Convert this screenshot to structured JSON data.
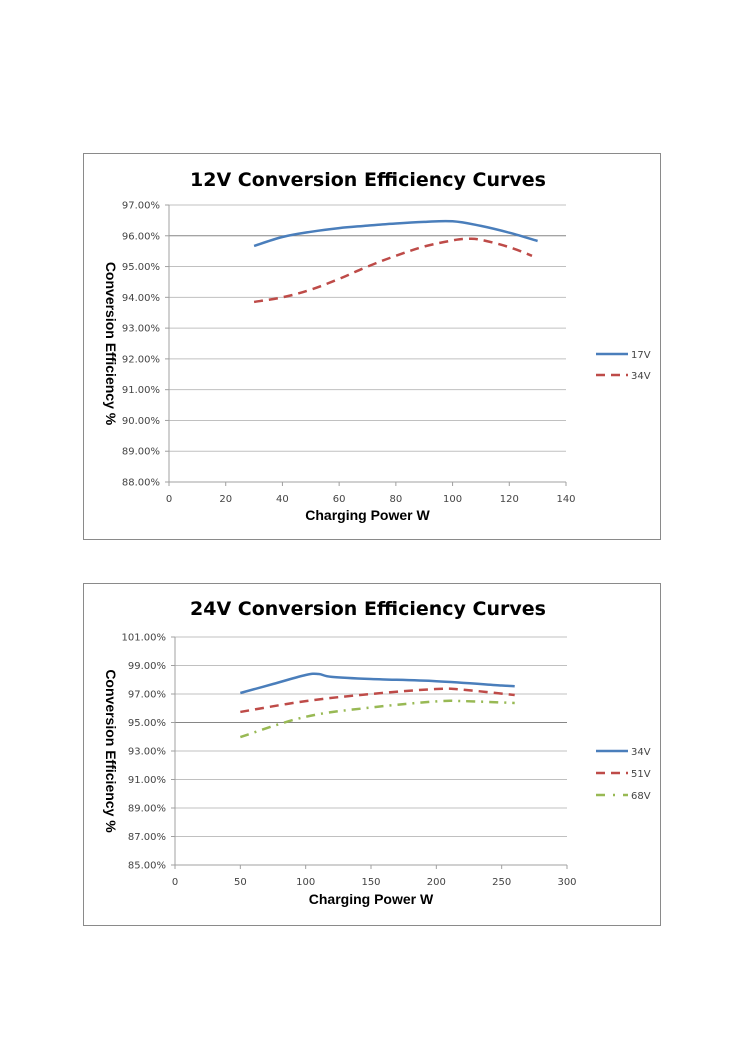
{
  "chart_data": [
    {
      "type": "line",
      "title": "12V Conversion Efficiency Curves",
      "xlabel": "Charging Power W",
      "ylabel": "Conversion Efficiency %",
      "xlim": [
        0,
        140
      ],
      "ylim": [
        88,
        97
      ],
      "xticks": [
        0,
        20,
        40,
        60,
        80,
        100,
        120,
        140
      ],
      "yticks": [
        88,
        89,
        90,
        91,
        92,
        93,
        94,
        95,
        96,
        97
      ],
      "ytick_labels": [
        "88.00%",
        "89.00%",
        "90.00%",
        "91.00%",
        "92.00%",
        "93.00%",
        "94.00%",
        "95.00%",
        "96.00%",
        "97.00%"
      ],
      "xtick_labels": [
        "0",
        "20",
        "40",
        "60",
        "80",
        "100",
        "120",
        "140"
      ],
      "grid": true,
      "emphasized_gridline": 96,
      "legend_position": "right",
      "series": [
        {
          "name": "17V",
          "color": "#4a7ebb",
          "style": "solid",
          "x": [
            30,
            40,
            50,
            60,
            70,
            80,
            90,
            100,
            110,
            120,
            130
          ],
          "y": [
            95.67,
            95.96,
            96.13,
            96.25,
            96.33,
            96.4,
            96.45,
            96.47,
            96.32,
            96.1,
            95.83
          ]
        },
        {
          "name": "34V",
          "color": "#be4b48",
          "style": "dashed",
          "x": [
            30,
            40,
            50,
            60,
            70,
            80,
            90,
            100,
            105,
            110,
            120,
            128
          ],
          "y": [
            93.85,
            94.0,
            94.25,
            94.6,
            95.0,
            95.35,
            95.65,
            95.85,
            95.9,
            95.87,
            95.63,
            95.35
          ]
        }
      ]
    },
    {
      "type": "line",
      "title": "24V Conversion Efficiency Curves",
      "xlabel": "Charging Power W",
      "ylabel": "Conversion Efficiency %",
      "xlim": [
        0,
        300
      ],
      "ylim": [
        85,
        101
      ],
      "xticks": [
        0,
        50,
        100,
        150,
        200,
        250,
        300
      ],
      "yticks": [
        85,
        87,
        89,
        91,
        93,
        95,
        97,
        99,
        101
      ],
      "ytick_labels": [
        "85.00%",
        "87.00%",
        "89.00%",
        "91.00%",
        "93.00%",
        "95.00%",
        "97.00%",
        "99.00%",
        "101.00%"
      ],
      "xtick_labels": [
        "0",
        "50",
        "100",
        "150",
        "200",
        "250",
        "300"
      ],
      "grid": true,
      "emphasized_gridline": 95,
      "legend_position": "right",
      "series": [
        {
          "name": "34V",
          "color": "#4a7ebb",
          "style": "solid",
          "x": [
            50,
            75,
            100,
            110,
            120,
            150,
            200,
            250,
            260
          ],
          "y": [
            97.07,
            97.7,
            98.33,
            98.4,
            98.2,
            98.05,
            97.9,
            97.6,
            97.55
          ]
        },
        {
          "name": "51V",
          "color": "#be4b48",
          "style": "dashed",
          "x": [
            50,
            100,
            150,
            200,
            220,
            260
          ],
          "y": [
            95.74,
            96.5,
            97.0,
            97.35,
            97.3,
            96.93
          ]
        },
        {
          "name": "68V",
          "color": "#98b954",
          "style": "dash-dot",
          "x": [
            50,
            100,
            150,
            200,
            220,
            260
          ],
          "y": [
            93.98,
            95.4,
            96.05,
            96.48,
            96.5,
            96.37
          ]
        }
      ]
    }
  ]
}
